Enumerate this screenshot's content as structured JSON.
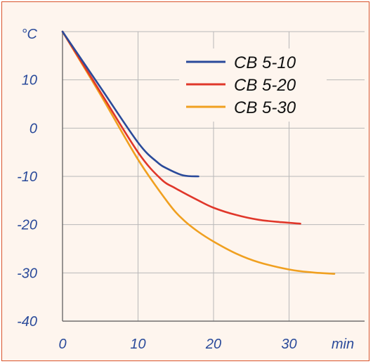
{
  "chart_data": {
    "type": "line",
    "ylabel": "°C",
    "xlabel": "min",
    "xlim": [
      0,
      40
    ],
    "ylim": [
      -40,
      20
    ],
    "xticks": [
      0,
      10,
      20,
      30
    ],
    "yticks": [
      10,
      0,
      -10,
      -20,
      -30,
      -40
    ],
    "grid": true,
    "legend_position": "top-right",
    "series": [
      {
        "name": "CB 5-10",
        "color": "#2a4a9a",
        "x": [
          0,
          5,
          10,
          12.5,
          14,
          16,
          18
        ],
        "y": [
          20,
          8.5,
          -3,
          -7,
          -8.5,
          -9.8,
          -10
        ]
      },
      {
        "name": "CB 5-20",
        "color": "#e0372a",
        "x": [
          0,
          5,
          10,
          13,
          15,
          18,
          20,
          23,
          26,
          29,
          31.5
        ],
        "y": [
          20,
          7.5,
          -5,
          -10.5,
          -12.5,
          -15,
          -16.5,
          -18,
          -19,
          -19.5,
          -19.8
        ]
      },
      {
        "name": "CB 5-30",
        "color": "#f0a020",
        "x": [
          0,
          5,
          10,
          14,
          16,
          18,
          20,
          23,
          26,
          30,
          33,
          36
        ],
        "y": [
          20,
          7,
          -6.5,
          -15.5,
          -19,
          -21.5,
          -23.5,
          -26,
          -27.8,
          -29.3,
          -29.9,
          -30.2
        ]
      }
    ]
  },
  "theme": {
    "text_color": "#2a4a9a",
    "grid_color": "#b8b8b8",
    "axis_color": "#555555",
    "background": "#fef5ee",
    "border_color": "#d9532b"
  }
}
